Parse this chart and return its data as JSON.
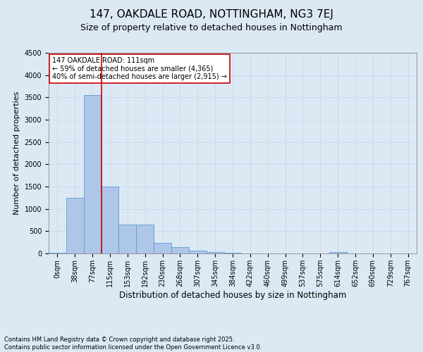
{
  "title": "147, OAKDALE ROAD, NOTTINGHAM, NG3 7EJ",
  "subtitle": "Size of property relative to detached houses in Nottingham",
  "xlabel": "Distribution of detached houses by size in Nottingham",
  "ylabel": "Number of detached properties",
  "bar_labels": [
    "0sqm",
    "38sqm",
    "77sqm",
    "115sqm",
    "153sqm",
    "192sqm",
    "230sqm",
    "268sqm",
    "307sqm",
    "345sqm",
    "384sqm",
    "422sqm",
    "460sqm",
    "499sqm",
    "537sqm",
    "575sqm",
    "614sqm",
    "652sqm",
    "690sqm",
    "729sqm",
    "767sqm"
  ],
  "bar_values": [
    10,
    1250,
    3550,
    1500,
    650,
    650,
    230,
    150,
    60,
    30,
    20,
    0,
    0,
    0,
    0,
    0,
    30,
    0,
    0,
    0,
    0
  ],
  "bar_color": "#aec6e8",
  "bar_edge_color": "#5b9bd5",
  "grid_color": "#c8d8e8",
  "background_color": "#dce9f5",
  "plot_bg_color": "#dce9f5",
  "vline_color": "#cc0000",
  "vline_bin": 3,
  "annotation_text": "147 OAKDALE ROAD: 111sqm\n← 59% of detached houses are smaller (4,365)\n40% of semi-detached houses are larger (2,915) →",
  "annotation_box_color": "#ffffff",
  "annotation_box_edge": "#cc0000",
  "ylim": [
    0,
    4500
  ],
  "yticks": [
    0,
    500,
    1000,
    1500,
    2000,
    2500,
    3000,
    3500,
    4000,
    4500
  ],
  "footer": "Contains HM Land Registry data © Crown copyright and database right 2025.\nContains public sector information licensed under the Open Government Licence v3.0.",
  "title_fontsize": 11,
  "subtitle_fontsize": 9,
  "xlabel_fontsize": 8.5,
  "ylabel_fontsize": 8,
  "tick_fontsize": 7,
  "annotation_fontsize": 7,
  "footer_fontsize": 6
}
